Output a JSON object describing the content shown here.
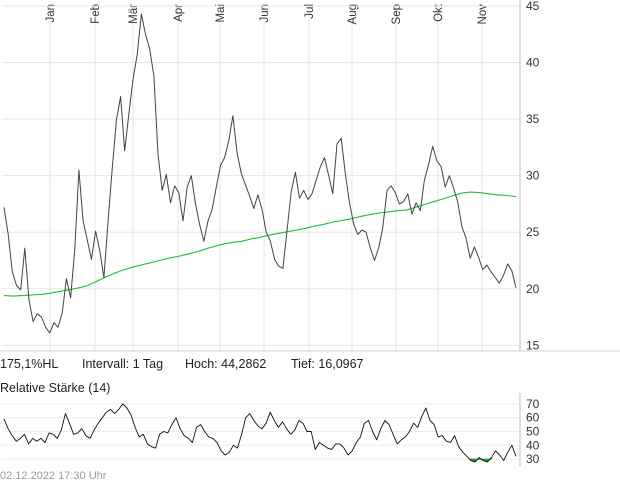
{
  "info": {
    "volatility": "175,1%HL",
    "interval": "Intervall: 1 Tag",
    "high": "Hoch: 44,2862",
    "low": "Tief: 16,0967"
  },
  "rsi_label": "Relative Stärke (14)",
  "timestamp": "02.12.2022 17:30 Uhr",
  "colors": {
    "price": "#444444",
    "moving_average": "#22bb33",
    "rsi_line": "#111111",
    "rsi_oversold_fill": "#1f9e2a",
    "grid": "#e6e6e6"
  },
  "chart_data": [
    {
      "type": "line",
      "title": "",
      "xlabel": "",
      "ylabel": "",
      "month_labels": [
        "Jan",
        "Feb",
        "Mär",
        "Apr",
        "Mai",
        "Jun",
        "Jul",
        "Aug",
        "Sep",
        "Okt",
        "Nov"
      ],
      "yticks": [
        15,
        20,
        25,
        30,
        35,
        40,
        45
      ],
      "ylim": [
        14.5,
        45
      ],
      "grid": true,
      "series": [
        {
          "key": "price",
          "values": [
            27.2,
            24.8,
            21.5,
            20.3,
            19.9,
            23.6,
            19.0,
            17.1,
            17.8,
            17.5,
            16.6,
            16.1,
            17.0,
            16.6,
            17.9,
            20.9,
            19.2,
            23.5,
            30.5,
            26.0,
            24.3,
            22.6,
            25.1,
            23.4,
            21.0,
            26.0,
            30.6,
            34.9,
            37.0,
            32.2,
            35.5,
            38.5,
            40.7,
            44.3,
            42.5,
            41.2,
            38.8,
            31.9,
            28.7,
            30.1,
            27.6,
            29.1,
            28.5,
            26.0,
            29.0,
            30.0,
            27.5,
            25.7,
            24.2,
            26.0,
            27.0,
            29.0,
            30.9,
            31.6,
            33.1,
            35.3,
            32.0,
            30.2,
            29.2,
            28.2,
            27.1,
            28.3,
            27.0,
            25.0,
            24.2,
            22.6,
            22.0,
            21.8,
            25.2,
            28.6,
            30.3,
            28.0,
            28.7,
            27.9,
            28.4,
            29.6,
            30.8,
            31.6,
            30.0,
            28.4,
            32.8,
            33.3,
            30.2,
            27.6,
            25.7,
            24.8,
            25.2,
            25.0,
            23.6,
            22.5,
            23.6,
            25.4,
            28.7,
            29.1,
            28.5,
            27.5,
            27.7,
            28.4,
            26.6,
            27.6,
            26.9,
            29.6,
            31.0,
            32.6,
            31.3,
            30.8,
            29.0,
            30.0,
            28.9,
            27.7,
            25.5,
            24.5,
            22.7,
            23.7,
            22.8,
            21.7,
            22.1,
            21.5,
            21.0,
            20.5,
            21.2,
            22.2,
            21.6,
            20.1
          ]
        },
        {
          "key": "moving_average",
          "values": [
            19.4,
            19.35,
            19.4,
            19.45,
            19.5,
            19.6,
            19.75,
            19.9,
            20.05,
            20.25,
            20.6,
            21.0,
            21.35,
            21.65,
            21.9,
            22.1,
            22.3,
            22.5,
            22.7,
            22.85,
            23.05,
            23.25,
            23.5,
            23.75,
            23.95,
            24.1,
            24.2,
            24.4,
            24.55,
            24.75,
            24.9,
            25.05,
            25.2,
            25.35,
            25.55,
            25.7,
            25.9,
            26.05,
            26.2,
            26.4,
            26.55,
            26.7,
            26.8,
            26.9,
            26.95,
            27.2,
            27.45,
            27.7,
            27.95,
            28.2,
            28.45,
            28.55,
            28.5,
            28.4,
            28.3,
            28.25,
            28.15
          ]
        },
        {
          "key": "rsi_14",
          "yticks": [
            30,
            40,
            50,
            60,
            70
          ],
          "ylim": [
            25,
            75
          ],
          "values": [
            59,
            52,
            47,
            43,
            45,
            48,
            41,
            45,
            43,
            45,
            42,
            49,
            48,
            45,
            51,
            63,
            56,
            48,
            49,
            52,
            47,
            45,
            51,
            56,
            60,
            64,
            66,
            63,
            66,
            70,
            67,
            62,
            53,
            46,
            48,
            41,
            39,
            38,
            48,
            50,
            49,
            55,
            60,
            52,
            47,
            45,
            42,
            53,
            55,
            50,
            46,
            45,
            42,
            36,
            33,
            35,
            40,
            38,
            48,
            60,
            63,
            58,
            54,
            52,
            56,
            64,
            58,
            53,
            57,
            52,
            48,
            51,
            58,
            56,
            50,
            50,
            37,
            42,
            40,
            38,
            37,
            41,
            41,
            38,
            33,
            36,
            42,
            46,
            56,
            58,
            50,
            44,
            52,
            58,
            55,
            48,
            41,
            44,
            46,
            50,
            56,
            53,
            61,
            67,
            58,
            55,
            46,
            47,
            43,
            42,
            47,
            39,
            35,
            32,
            29,
            28,
            31,
            29,
            28,
            31,
            36,
            33,
            29,
            35,
            40,
            32
          ]
        }
      ]
    }
  ]
}
